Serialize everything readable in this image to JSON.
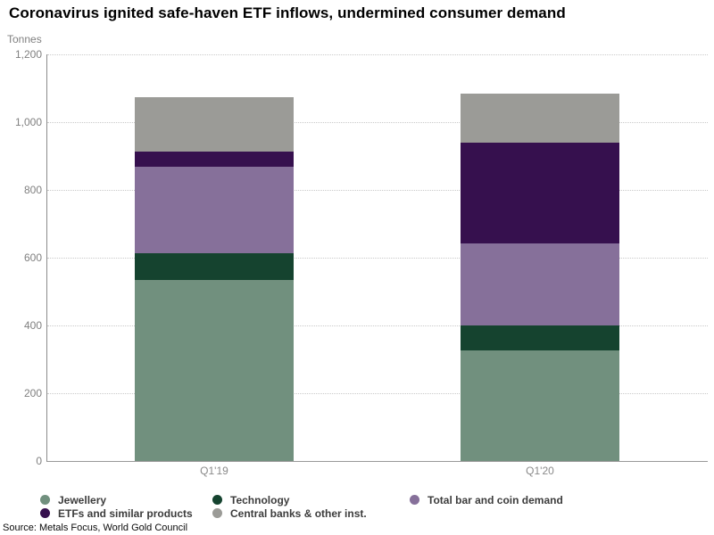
{
  "title": "Coronavirus ignited safe-haven ETF inflows, undermined consumer demand",
  "source": "Source: Metals Focus, World Gold Council",
  "chart_data": {
    "type": "bar",
    "stacked": true,
    "unit_label": "Tonnes",
    "categories": [
      "Q1'19",
      "Q1'20"
    ],
    "series": [
      {
        "name": "Jewellery",
        "color": "#71907e",
        "values": [
          533,
          326
        ]
      },
      {
        "name": "Technology",
        "color": "#15432f",
        "values": [
          79,
          73
        ]
      },
      {
        "name": "Total bar and coin demand",
        "color": "#86709a",
        "values": [
          257,
          243
        ]
      },
      {
        "name": "ETFs and similar products",
        "color": "#36104e",
        "values": [
          44,
          298
        ]
      },
      {
        "name": "Central banks & other inst.",
        "color": "#9b9b97",
        "values": [
          160,
          143
        ]
      }
    ],
    "totals": [
      1073,
      1083
    ],
    "ylim": [
      0,
      1200
    ],
    "ytick_interval": 200,
    "ytick_labels": [
      "0",
      "200",
      "400",
      "600",
      "800",
      "1,000",
      "1,200"
    ],
    "grid": "horizontal-dotted",
    "legend_position": "bottom",
    "legend_rows": [
      [
        "Jewellery",
        "Technology",
        "Total bar and coin demand"
      ],
      [
        "ETFs and similar products",
        "Central banks & other inst."
      ]
    ]
  }
}
